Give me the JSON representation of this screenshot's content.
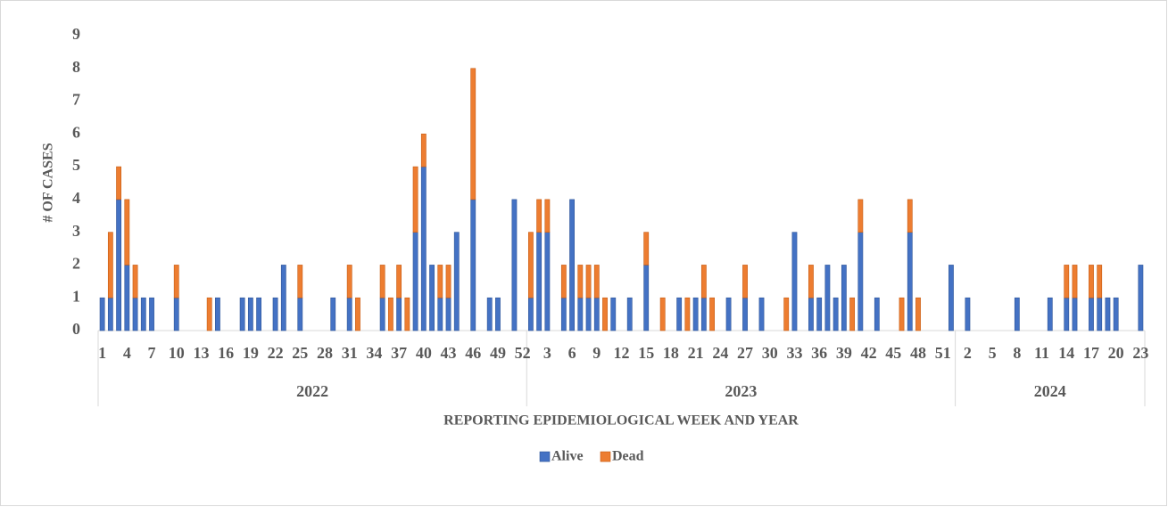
{
  "chart_data": {
    "type": "stacked_bar",
    "y_label": "# OF CASES",
    "x_label": "REPORTING EPIDEMIOLOGICAL WEEK AND YEAR",
    "ylim": [
      0,
      9
    ],
    "yticks": [
      0,
      1,
      2,
      3,
      4,
      5,
      6,
      7,
      8,
      9
    ],
    "grid": false,
    "legend": "bottom",
    "groups": [
      {
        "name": "2022",
        "count": 52
      },
      {
        "name": "2023",
        "count": 52
      },
      {
        "name": "2024",
        "count": 23
      }
    ],
    "categories": [
      "1",
      null,
      null,
      "4",
      null,
      null,
      "7",
      null,
      null,
      "10",
      null,
      null,
      "13",
      null,
      null,
      "16",
      null,
      null,
      "19",
      null,
      null,
      "22",
      null,
      null,
      "25",
      null,
      null,
      "28",
      null,
      null,
      "31",
      null,
      null,
      "34",
      null,
      null,
      "37",
      null,
      null,
      "40",
      null,
      null,
      "43",
      null,
      null,
      "46",
      null,
      null,
      "49",
      null,
      null,
      "52",
      null,
      null,
      "3",
      null,
      null,
      "6",
      null,
      null,
      "9",
      null,
      null,
      "12",
      null,
      null,
      "15",
      null,
      null,
      "18",
      null,
      null,
      "21",
      null,
      null,
      "24",
      null,
      null,
      "27",
      null,
      null,
      "30",
      null,
      null,
      "33",
      null,
      null,
      "36",
      null,
      null,
      "39",
      null,
      null,
      "42",
      null,
      null,
      "45",
      null,
      null,
      "48",
      null,
      null,
      "51",
      null,
      null,
      "2",
      null,
      null,
      "5",
      null,
      null,
      "8",
      null,
      null,
      "11",
      null,
      null,
      "14",
      null,
      null,
      "17",
      null,
      null,
      "20",
      null,
      null,
      "23"
    ],
    "series": [
      {
        "name": "Alive",
        "color": "#4472c4",
        "values": [
          1,
          1,
          4,
          2,
          1,
          1,
          1,
          0,
          0,
          1,
          0,
          0,
          0,
          0,
          1,
          0,
          0,
          1,
          1,
          1,
          0,
          1,
          2,
          0,
          1,
          0,
          0,
          0,
          1,
          0,
          1,
          0,
          0,
          0,
          1,
          0,
          1,
          0,
          3,
          5,
          2,
          1,
          1,
          3,
          0,
          4,
          0,
          1,
          1,
          0,
          4,
          0,
          1,
          3,
          3,
          0,
          1,
          4,
          1,
          1,
          1,
          0,
          1,
          0,
          1,
          0,
          2,
          0,
          0,
          0,
          1,
          0,
          1,
          1,
          0,
          0,
          1,
          0,
          1,
          0,
          1,
          0,
          0,
          0,
          3,
          0,
          1,
          1,
          2,
          1,
          2,
          0,
          3,
          0,
          1,
          0,
          0,
          0,
          3,
          0,
          0,
          0,
          0,
          2,
          0,
          1,
          0,
          0,
          0,
          0,
          0,
          1,
          0,
          0,
          0,
          1,
          0,
          1,
          1,
          0,
          1,
          1,
          1,
          1,
          0,
          0,
          2
        ]
      },
      {
        "name": "Dead",
        "color": "#ed7d31",
        "values": [
          0,
          2,
          1,
          2,
          1,
          0,
          0,
          0,
          0,
          1,
          0,
          0,
          0,
          1,
          0,
          0,
          0,
          0,
          0,
          0,
          0,
          0,
          0,
          0,
          1,
          0,
          0,
          0,
          0,
          0,
          1,
          1,
          0,
          0,
          1,
          1,
          1,
          1,
          2,
          1,
          0,
          1,
          1,
          0,
          0,
          4,
          0,
          0,
          0,
          0,
          0,
          0,
          2,
          1,
          1,
          0,
          1,
          0,
          1,
          1,
          1,
          1,
          0,
          0,
          0,
          0,
          1,
          0,
          1,
          0,
          0,
          1,
          0,
          1,
          1,
          0,
          0,
          0,
          1,
          0,
          0,
          0,
          0,
          1,
          0,
          0,
          1,
          0,
          0,
          0,
          0,
          1,
          1,
          0,
          0,
          0,
          0,
          1,
          1,
          1,
          0,
          0,
          0,
          0,
          0,
          0,
          0,
          0,
          0,
          0,
          0,
          0,
          0,
          0,
          0,
          0,
          0,
          1,
          1,
          0,
          1,
          1,
          0,
          0,
          0,
          0,
          0
        ]
      }
    ]
  }
}
